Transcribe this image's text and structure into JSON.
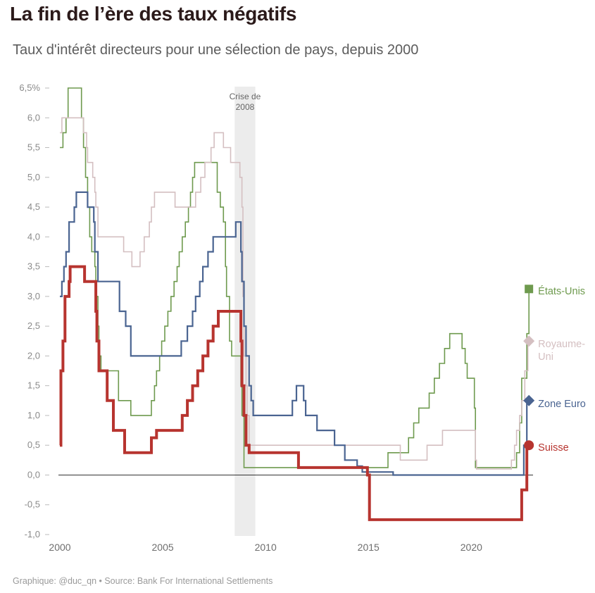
{
  "header": {
    "title": "La fin de l’ère des taux négatifs",
    "subtitle": "Taux d'intérêt directeurs pour une sélection de pays, depuis 2000"
  },
  "footer": {
    "source": "Graphique: @duc_qn • Source: Bank For International Settlements"
  },
  "chart_data": {
    "type": "line",
    "title": "La fin de l’ère des taux négatifs",
    "subtitle": "Taux d'intérêt directeurs pour une sélection de pays, depuis 2000",
    "xlim": [
      2000,
      2023
    ],
    "ylim": [
      -1.0,
      6.5
    ],
    "y_ticks": [
      6.5,
      6.0,
      5.5,
      5.0,
      4.5,
      4.0,
      3.5,
      3.0,
      2.5,
      2.0,
      1.5,
      1.0,
      0.5,
      0.0,
      -0.5,
      -1.0
    ],
    "y_tick_labels": [
      "6,5%",
      "6,0",
      "5,5",
      "5,0",
      "4,5",
      "4,0",
      "3,5",
      "3,0",
      "2,5",
      "2,0",
      "1,5",
      "1,0",
      "0,5",
      "0,0",
      "-0,5",
      "-1,0"
    ],
    "x_ticks": [
      2000,
      2005,
      2010,
      2015,
      2020
    ],
    "x_tick_labels": [
      "2000",
      "2005",
      "2010",
      "2015",
      "2020"
    ],
    "grid": false,
    "legend": "direct labels at line ends",
    "annotations": [
      {
        "label_lines": [
          "Crise de",
          "2008"
        ],
        "x_range": [
          2008.5,
          2009.5
        ],
        "color": "#ececec"
      }
    ],
    "series": [
      {
        "name": "États-Unis",
        "label_lines": [
          "États-Unis"
        ],
        "color": "#6e9a4e",
        "width": 1.6,
        "marker": "square",
        "points": [
          [
            2000,
            5.5
          ],
          [
            2000.15,
            5.75
          ],
          [
            2000.3,
            6.0
          ],
          [
            2000.4,
            6.5
          ],
          [
            2000.95,
            6.5
          ],
          [
            2001.05,
            6.0
          ],
          [
            2001.15,
            5.5
          ],
          [
            2001.25,
            5.0
          ],
          [
            2001.35,
            4.5
          ],
          [
            2001.45,
            4.0
          ],
          [
            2001.55,
            3.75
          ],
          [
            2001.7,
            3.5
          ],
          [
            2001.75,
            3.0
          ],
          [
            2001.85,
            2.5
          ],
          [
            2001.9,
            2.0
          ],
          [
            2002.0,
            1.75
          ],
          [
            2002.85,
            1.25
          ],
          [
            2003.45,
            1.0
          ],
          [
            2004.45,
            1.25
          ],
          [
            2004.6,
            1.5
          ],
          [
            2004.7,
            1.75
          ],
          [
            2004.85,
            2.0
          ],
          [
            2004.95,
            2.25
          ],
          [
            2005.1,
            2.5
          ],
          [
            2005.25,
            2.75
          ],
          [
            2005.4,
            3.0
          ],
          [
            2005.55,
            3.25
          ],
          [
            2005.7,
            3.5
          ],
          [
            2005.8,
            3.75
          ],
          [
            2005.95,
            4.0
          ],
          [
            2006.1,
            4.25
          ],
          [
            2006.25,
            4.5
          ],
          [
            2006.35,
            4.75
          ],
          [
            2006.45,
            5.0
          ],
          [
            2006.55,
            5.25
          ],
          [
            2007.65,
            4.75
          ],
          [
            2007.8,
            4.5
          ],
          [
            2007.95,
            4.25
          ],
          [
            2008.05,
            3.5
          ],
          [
            2008.1,
            3.0
          ],
          [
            2008.25,
            2.25
          ],
          [
            2008.35,
            2.0
          ],
          [
            2008.8,
            1.5
          ],
          [
            2008.85,
            1.0
          ],
          [
            2008.95,
            0.125
          ],
          [
            2015.95,
            0.375
          ],
          [
            2016.95,
            0.625
          ],
          [
            2017.2,
            0.875
          ],
          [
            2017.45,
            1.125
          ],
          [
            2017.95,
            1.375
          ],
          [
            2018.2,
            1.625
          ],
          [
            2018.45,
            1.875
          ],
          [
            2018.7,
            2.125
          ],
          [
            2018.95,
            2.375
          ],
          [
            2019.55,
            2.125
          ],
          [
            2019.7,
            1.875
          ],
          [
            2019.8,
            1.625
          ],
          [
            2020.15,
            1.125
          ],
          [
            2020.2,
            0.125
          ],
          [
            2022.2,
            0.375
          ],
          [
            2022.35,
            0.875
          ],
          [
            2022.45,
            1.625
          ],
          [
            2022.7,
            2.375
          ],
          [
            2022.8,
            3.125
          ],
          [
            2022.8,
            3.125
          ]
        ]
      },
      {
        "name": "Royaume-Uni",
        "label_lines": [
          "Royaume-",
          "Uni"
        ],
        "color": "#d4bfc1",
        "width": 1.6,
        "marker": "diamond",
        "points": [
          [
            2000,
            5.75
          ],
          [
            2000.1,
            6.0
          ],
          [
            2001.15,
            5.75
          ],
          [
            2001.3,
            5.5
          ],
          [
            2001.35,
            5.25
          ],
          [
            2001.6,
            5.0
          ],
          [
            2001.7,
            4.75
          ],
          [
            2001.75,
            4.5
          ],
          [
            2001.85,
            4.0
          ],
          [
            2003.1,
            3.75
          ],
          [
            2003.5,
            3.5
          ],
          [
            2003.9,
            3.75
          ],
          [
            2004.1,
            4.0
          ],
          [
            2004.35,
            4.25
          ],
          [
            2004.45,
            4.5
          ],
          [
            2004.6,
            4.75
          ],
          [
            2005.6,
            4.5
          ],
          [
            2006.6,
            4.75
          ],
          [
            2006.85,
            5.0
          ],
          [
            2007.05,
            5.25
          ],
          [
            2007.35,
            5.5
          ],
          [
            2007.5,
            5.75
          ],
          [
            2007.95,
            5.5
          ],
          [
            2008.3,
            5.25
          ],
          [
            2008.75,
            5.0
          ],
          [
            2008.85,
            4.5
          ],
          [
            2008.9,
            3.0
          ],
          [
            2008.95,
            2.0
          ],
          [
            2009.05,
            1.5
          ],
          [
            2009.1,
            1.0
          ],
          [
            2009.2,
            0.5
          ],
          [
            2016.55,
            0.25
          ],
          [
            2017.85,
            0.5
          ],
          [
            2018.6,
            0.75
          ],
          [
            2020.2,
            0.25
          ],
          [
            2020.25,
            0.1
          ],
          [
            2021.95,
            0.25
          ],
          [
            2022.1,
            0.5
          ],
          [
            2022.2,
            0.75
          ],
          [
            2022.35,
            1.0
          ],
          [
            2022.45,
            1.25
          ],
          [
            2022.6,
            1.75
          ],
          [
            2022.75,
            2.25
          ],
          [
            2022.8,
            2.25
          ]
        ]
      },
      {
        "name": "Zone Euro",
        "label_lines": [
          "Zone Euro"
        ],
        "color": "#4a6491",
        "width": 2.2,
        "marker": "diamond",
        "points": [
          [
            2000,
            3.0
          ],
          [
            2000.1,
            3.25
          ],
          [
            2000.2,
            3.5
          ],
          [
            2000.3,
            3.75
          ],
          [
            2000.45,
            4.25
          ],
          [
            2000.7,
            4.5
          ],
          [
            2000.8,
            4.75
          ],
          [
            2001.35,
            4.5
          ],
          [
            2001.65,
            4.25
          ],
          [
            2001.7,
            3.75
          ],
          [
            2001.85,
            3.25
          ],
          [
            2002.9,
            2.75
          ],
          [
            2003.2,
            2.5
          ],
          [
            2003.45,
            2.0
          ],
          [
            2005.9,
            2.25
          ],
          [
            2006.2,
            2.5
          ],
          [
            2006.45,
            2.75
          ],
          [
            2006.6,
            3.0
          ],
          [
            2006.8,
            3.25
          ],
          [
            2006.95,
            3.5
          ],
          [
            2007.2,
            3.75
          ],
          [
            2007.45,
            4.0
          ],
          [
            2008.55,
            4.25
          ],
          [
            2008.8,
            3.75
          ],
          [
            2008.85,
            3.25
          ],
          [
            2008.95,
            2.5
          ],
          [
            2009.05,
            2.0
          ],
          [
            2009.2,
            1.5
          ],
          [
            2009.3,
            1.25
          ],
          [
            2009.4,
            1.0
          ],
          [
            2011.3,
            1.25
          ],
          [
            2011.5,
            1.5
          ],
          [
            2011.85,
            1.25
          ],
          [
            2011.95,
            1.0
          ],
          [
            2012.5,
            0.75
          ],
          [
            2013.35,
            0.5
          ],
          [
            2013.85,
            0.25
          ],
          [
            2014.45,
            0.15
          ],
          [
            2014.7,
            0.05
          ],
          [
            2016.2,
            0.0
          ],
          [
            2022.55,
            0.5
          ],
          [
            2022.7,
            1.25
          ],
          [
            2022.8,
            1.25
          ]
        ]
      },
      {
        "name": "Suisse",
        "label_lines": [
          "Suisse"
        ],
        "color": "#b7342f",
        "width": 4.0,
        "marker": "circle",
        "points": [
          [
            2000,
            0.5
          ],
          [
            2000.05,
            1.75
          ],
          [
            2000.15,
            2.25
          ],
          [
            2000.25,
            3.0
          ],
          [
            2000.45,
            3.25
          ],
          [
            2000.5,
            3.5
          ],
          [
            2001.2,
            3.25
          ],
          [
            2001.75,
            2.75
          ],
          [
            2001.8,
            2.25
          ],
          [
            2001.9,
            1.75
          ],
          [
            2002.3,
            1.25
          ],
          [
            2002.6,
            0.75
          ],
          [
            2003.15,
            0.375
          ],
          [
            2004.45,
            0.625
          ],
          [
            2004.7,
            0.75
          ],
          [
            2005.95,
            1.0
          ],
          [
            2006.2,
            1.25
          ],
          [
            2006.45,
            1.5
          ],
          [
            2006.7,
            1.75
          ],
          [
            2006.95,
            2.0
          ],
          [
            2007.2,
            2.25
          ],
          [
            2007.45,
            2.5
          ],
          [
            2007.7,
            2.75
          ],
          [
            2008.8,
            2.25
          ],
          [
            2008.85,
            1.5
          ],
          [
            2008.95,
            1.0
          ],
          [
            2009.05,
            0.5
          ],
          [
            2009.2,
            0.375
          ],
          [
            2011.6,
            0.125
          ],
          [
            2014.95,
            0.0
          ],
          [
            2015.05,
            -0.75
          ],
          [
            2022.45,
            -0.25
          ],
          [
            2022.7,
            0.5
          ],
          [
            2022.8,
            0.5
          ]
        ]
      }
    ]
  }
}
